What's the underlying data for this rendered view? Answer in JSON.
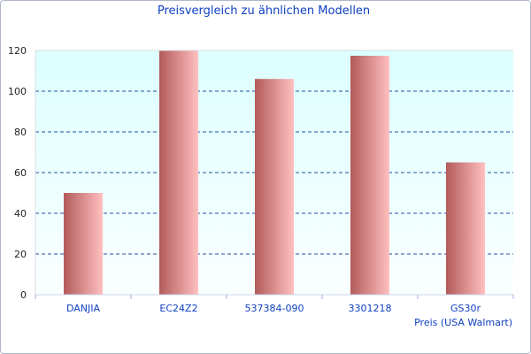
{
  "chart_data": {
    "type": "bar",
    "title": "Preisvergleich zu ähnlichen Modellen",
    "xlabel": "Preis (USA Walmart)",
    "ylabel": "",
    "categories": [
      "DANJIA",
      "EC24Z2",
      "537384-090",
      "3301218",
      "GS30r"
    ],
    "values": [
      50,
      120,
      106,
      117.4,
      65
    ],
    "ylim": [
      0,
      120
    ],
    "yticks": [
      0,
      20,
      40,
      60,
      80,
      100,
      120
    ],
    "grid": true,
    "legend": "none",
    "colors": {
      "bar_dark": "#b35a5a",
      "bar_light": "#ffc0c0",
      "text": "#1040c0",
      "grid": "#2050a0",
      "plot_top": "#dcffff",
      "plot_bottom": "#fbffff"
    }
  }
}
